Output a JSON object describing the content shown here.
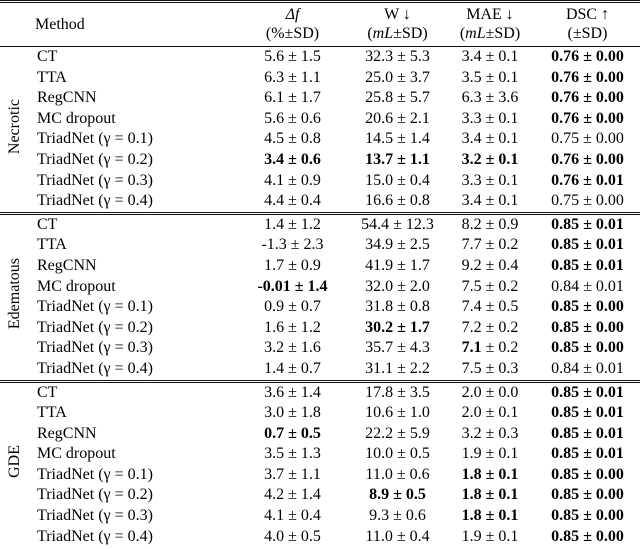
{
  "table": {
    "pm": "±",
    "columns": [
      {
        "key": "method",
        "line1": "Method",
        "pre": "",
        "unit": "",
        "post": "",
        "italic1": false
      },
      {
        "key": "df",
        "line1": "Δf",
        "pre": "(%",
        "unit": "",
        "post": "±SD)",
        "italic1": true
      },
      {
        "key": "w",
        "line1": "W ↓",
        "pre": "(",
        "unit": "mL",
        "post": "±SD)",
        "italic1": false
      },
      {
        "key": "mae",
        "line1": "MAE ↓",
        "pre": "(",
        "unit": "mL",
        "post": "±SD)",
        "italic1": false
      },
      {
        "key": "dsc",
        "line1": "DSC ↑",
        "pre": "(",
        "unit": "",
        "post": "±SD)",
        "italic1": false
      }
    ],
    "groups": [
      {
        "label": "Necrotic",
        "rows": [
          {
            "method": "CT",
            "cells": [
              {
                "m": "5.6",
                "s": "1.5",
                "b": "n"
              },
              {
                "m": "32.3",
                "s": "5.3",
                "b": "n"
              },
              {
                "m": "3.4",
                "s": "0.1",
                "b": "n"
              },
              {
                "m": "0.76",
                "s": "0.00",
                "b": "a"
              }
            ]
          },
          {
            "method": "TTA",
            "cells": [
              {
                "m": "6.3",
                "s": "1.1",
                "b": "n"
              },
              {
                "m": "25.0",
                "s": "3.7",
                "b": "n"
              },
              {
                "m": "3.5",
                "s": "0.1",
                "b": "n"
              },
              {
                "m": "0.76",
                "s": "0.00",
                "b": "a"
              }
            ]
          },
          {
            "method": "RegCNN",
            "cells": [
              {
                "m": "6.1",
                "s": "1.7",
                "b": "n"
              },
              {
                "m": "25.8",
                "s": "5.7",
                "b": "n"
              },
              {
                "m": "6.3",
                "s": "3.6",
                "b": "n"
              },
              {
                "m": "0.76",
                "s": "0.00",
                "b": "a"
              }
            ]
          },
          {
            "method": "MC dropout",
            "cells": [
              {
                "m": "5.6",
                "s": "0.6",
                "b": "n"
              },
              {
                "m": "20.6",
                "s": "2.1",
                "b": "n"
              },
              {
                "m": "3.3",
                "s": "0.1",
                "b": "n"
              },
              {
                "m": "0.76",
                "s": "0.00",
                "b": "a"
              }
            ]
          },
          {
            "method": "TriadNet (γ = 0.1)",
            "cells": [
              {
                "m": "4.5",
                "s": "0.8",
                "b": "n"
              },
              {
                "m": "14.5",
                "s": "1.4",
                "b": "n"
              },
              {
                "m": "3.4",
                "s": "0.1",
                "b": "n"
              },
              {
                "m": "0.75",
                "s": "0.00",
                "b": "n"
              }
            ]
          },
          {
            "method": "TriadNet (γ = 0.2)",
            "cells": [
              {
                "m": "3.4",
                "s": "0.6",
                "b": "a"
              },
              {
                "m": "13.7",
                "s": "1.1",
                "b": "a"
              },
              {
                "m": "3.2",
                "s": "0.1",
                "b": "a"
              },
              {
                "m": "0.76",
                "s": "0.00",
                "b": "a"
              }
            ]
          },
          {
            "method": "TriadNet (γ = 0.3)",
            "cells": [
              {
                "m": "4.1",
                "s": "0.9",
                "b": "n"
              },
              {
                "m": "15.0",
                "s": "0.4",
                "b": "n"
              },
              {
                "m": "3.3",
                "s": "0.1",
                "b": "n"
              },
              {
                "m": "0.76",
                "s": "0.01",
                "b": "a"
              }
            ]
          },
          {
            "method": "TriadNet (γ = 0.4)",
            "cells": [
              {
                "m": "4.4",
                "s": "0.4",
                "b": "n"
              },
              {
                "m": "16.6",
                "s": "0.8",
                "b": "n"
              },
              {
                "m": "3.4",
                "s": "0.1",
                "b": "n"
              },
              {
                "m": "0.75",
                "s": "0.00",
                "b": "n"
              }
            ]
          }
        ]
      },
      {
        "label": "Edematous",
        "rows": [
          {
            "method": "CT",
            "cells": [
              {
                "m": "1.4",
                "s": "1.2",
                "b": "n"
              },
              {
                "m": "54.4",
                "s": "12.3",
                "b": "n"
              },
              {
                "m": "8.2",
                "s": "0.9",
                "b": "n"
              },
              {
                "m": "0.85",
                "s": "0.01",
                "b": "a"
              }
            ]
          },
          {
            "method": "TTA",
            "cells": [
              {
                "m": "-1.3",
                "s": "2.3",
                "b": "n"
              },
              {
                "m": "34.9",
                "s": "2.5",
                "b": "n"
              },
              {
                "m": "7.7",
                "s": "0.2",
                "b": "n"
              },
              {
                "m": "0.85",
                "s": "0.01",
                "b": "a"
              }
            ]
          },
          {
            "method": "RegCNN",
            "cells": [
              {
                "m": "1.7",
                "s": "0.9",
                "b": "n"
              },
              {
                "m": "41.9",
                "s": "1.7",
                "b": "n"
              },
              {
                "m": "9.2",
                "s": "0.4",
                "b": "n"
              },
              {
                "m": "0.85",
                "s": "0.01",
                "b": "a"
              }
            ]
          },
          {
            "method": "MC dropout",
            "cells": [
              {
                "m": "-0.01",
                "s": "1.4",
                "b": "a"
              },
              {
                "m": "32.0",
                "s": "2.0",
                "b": "n"
              },
              {
                "m": "7.5",
                "s": "0.2",
                "b": "n"
              },
              {
                "m": "0.84",
                "s": "0.01",
                "b": "n"
              }
            ]
          },
          {
            "method": "TriadNet (γ = 0.1)",
            "cells": [
              {
                "m": "0.9",
                "s": "0.7",
                "b": "n"
              },
              {
                "m": "31.8",
                "s": "0.8",
                "b": "n"
              },
              {
                "m": "7.4",
                "s": "0.5",
                "b": "n"
              },
              {
                "m": "0.85",
                "s": "0.00",
                "b": "a"
              }
            ]
          },
          {
            "method": "TriadNet (γ = 0.2)",
            "cells": [
              {
                "m": "1.6",
                "s": "1.2",
                "b": "n"
              },
              {
                "m": "30.2",
                "s": "1.7",
                "b": "a"
              },
              {
                "m": "7.2",
                "s": "0.2",
                "b": "n"
              },
              {
                "m": "0.85",
                "s": "0.00",
                "b": "a"
              }
            ]
          },
          {
            "method": "TriadNet (γ = 0.3)",
            "cells": [
              {
                "m": "3.2",
                "s": "1.6",
                "b": "n"
              },
              {
                "m": "35.7",
                "s": "4.3",
                "b": "n"
              },
              {
                "m": "7.1",
                "s": "0.2",
                "b": "m"
              },
              {
                "m": "0.85",
                "s": "0.00",
                "b": "a"
              }
            ]
          },
          {
            "method": "TriadNet (γ = 0.4)",
            "cells": [
              {
                "m": "1.4",
                "s": "0.7",
                "b": "n"
              },
              {
                "m": "31.1",
                "s": "2.2",
                "b": "n"
              },
              {
                "m": "7.5",
                "s": "0.3",
                "b": "n"
              },
              {
                "m": "0.84",
                "s": "0.01",
                "b": "n"
              }
            ]
          }
        ]
      },
      {
        "label": "GDE",
        "rows": [
          {
            "method": "CT",
            "cells": [
              {
                "m": "3.6",
                "s": "1.4",
                "b": "n"
              },
              {
                "m": "17.8",
                "s": "3.5",
                "b": "n"
              },
              {
                "m": "2.0",
                "s": "0.0",
                "b": "n"
              },
              {
                "m": "0.85",
                "s": "0.01",
                "b": "a"
              }
            ]
          },
          {
            "method": "TTA",
            "cells": [
              {
                "m": "3.0",
                "s": "1.8",
                "b": "n"
              },
              {
                "m": "10.6",
                "s": "1.0",
                "b": "n"
              },
              {
                "m": "2.0",
                "s": "0.1",
                "b": "n"
              },
              {
                "m": "0.85",
                "s": "0.01",
                "b": "a"
              }
            ]
          },
          {
            "method": "RegCNN",
            "cells": [
              {
                "m": "0.7",
                "s": "0.5",
                "b": "a"
              },
              {
                "m": "22.2",
                "s": "5.9",
                "b": "n"
              },
              {
                "m": "3.2",
                "s": "0.3",
                "b": "n"
              },
              {
                "m": "0.85",
                "s": "0.01",
                "b": "a"
              }
            ]
          },
          {
            "method": "MC dropout",
            "cells": [
              {
                "m": "3.5",
                "s": "1.3",
                "b": "n"
              },
              {
                "m": "10.0",
                "s": "0.5",
                "b": "n"
              },
              {
                "m": "1.9",
                "s": "0.1",
                "b": "n"
              },
              {
                "m": "0.85",
                "s": "0.01",
                "b": "a"
              }
            ]
          },
          {
            "method": "TriadNet (γ = 0.1)",
            "cells": [
              {
                "m": "3.7",
                "s": "1.1",
                "b": "n"
              },
              {
                "m": "11.0",
                "s": "0.6",
                "b": "n"
              },
              {
                "m": "1.8",
                "s": "0.1",
                "b": "a"
              },
              {
                "m": "0.85",
                "s": "0.00",
                "b": "a"
              }
            ]
          },
          {
            "method": "TriadNet (γ = 0.2)",
            "cells": [
              {
                "m": "4.2",
                "s": "1.4",
                "b": "n"
              },
              {
                "m": "8.9",
                "s": "0.5",
                "b": "a"
              },
              {
                "m": "1.8",
                "s": "0.1",
                "b": "a"
              },
              {
                "m": "0.85",
                "s": "0.00",
                "b": "a"
              }
            ]
          },
          {
            "method": "TriadNet (γ = 0.3)",
            "cells": [
              {
                "m": "4.1",
                "s": "0.4",
                "b": "n"
              },
              {
                "m": "9.3",
                "s": "0.6",
                "b": "n"
              },
              {
                "m": "1.8",
                "s": "0.1",
                "b": "a"
              },
              {
                "m": "0.85",
                "s": "0.00",
                "b": "a"
              }
            ]
          },
          {
            "method": "TriadNet (γ = 0.4)",
            "cells": [
              {
                "m": "4.0",
                "s": "0.5",
                "b": "n"
              },
              {
                "m": "11.0",
                "s": "0.4",
                "b": "n"
              },
              {
                "m": "1.9",
                "s": "0.1",
                "b": "n"
              },
              {
                "m": "0.85",
                "s": "0.00",
                "b": "a"
              }
            ]
          }
        ]
      }
    ]
  }
}
